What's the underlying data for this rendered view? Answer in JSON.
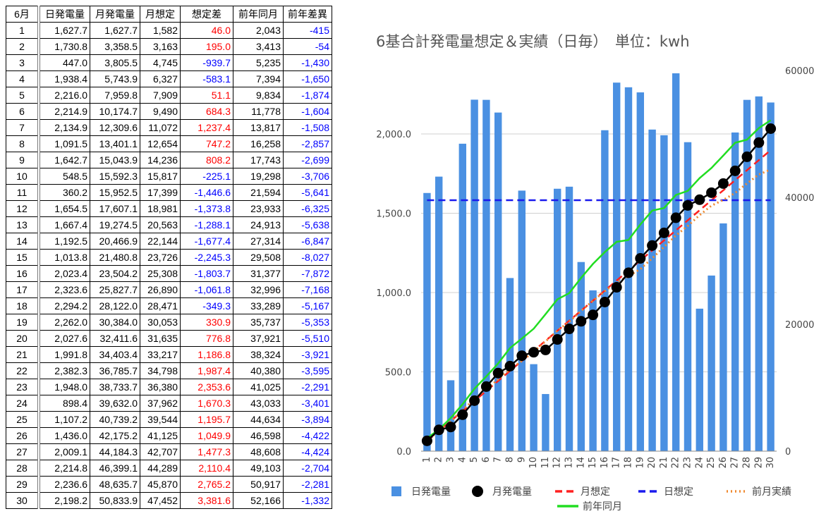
{
  "table": {
    "headers": [
      "6月",
      "日発電量",
      "月発電量",
      "月想定",
      "想定差",
      "前年同月",
      "前年差異"
    ],
    "rows": [
      [
        "1",
        "1,627.7",
        "1,627.7",
        "1,582",
        "46.0",
        "2,043",
        "-415"
      ],
      [
        "2",
        "1,730.8",
        "3,358.5",
        "3,163",
        "195.0",
        "3,413",
        "-54"
      ],
      [
        "3",
        "447.0",
        "3,805.5",
        "4,745",
        "-939.7",
        "5,235",
        "-1,430"
      ],
      [
        "4",
        "1,938.4",
        "5,743.9",
        "6,327",
        "-583.1",
        "7,394",
        "-1,650"
      ],
      [
        "5",
        "2,216.0",
        "7,959.8",
        "7,909",
        "51.1",
        "9,834",
        "-1,874"
      ],
      [
        "6",
        "2,214.9",
        "10,174.7",
        "9,490",
        "684.3",
        "11,778",
        "-1,604"
      ],
      [
        "7",
        "2,134.9",
        "12,309.6",
        "11,072",
        "1,237.4",
        "13,817",
        "-1,508"
      ],
      [
        "8",
        "1,091.5",
        "13,401.1",
        "12,654",
        "747.2",
        "16,258",
        "-2,857"
      ],
      [
        "9",
        "1,642.7",
        "15,043.9",
        "14,236",
        "808.2",
        "17,743",
        "-2,699"
      ],
      [
        "10",
        "548.5",
        "15,592.3",
        "15,817",
        "-225.1",
        "19,298",
        "-3,706"
      ],
      [
        "11",
        "360.2",
        "15,952.5",
        "17,399",
        "-1,446.6",
        "21,594",
        "-5,641"
      ],
      [
        "12",
        "1,654.5",
        "17,607.1",
        "18,981",
        "-1,373.8",
        "23,933",
        "-6,325"
      ],
      [
        "13",
        "1,667.4",
        "19,274.5",
        "20,563",
        "-1,288.1",
        "24,913",
        "-5,638"
      ],
      [
        "14",
        "1,192.5",
        "20,466.9",
        "22,144",
        "-1,677.4",
        "27,314",
        "-6,847"
      ],
      [
        "15",
        "1,013.8",
        "21,480.8",
        "23,726",
        "-2,245.3",
        "29,508",
        "-8,027"
      ],
      [
        "16",
        "2,023.4",
        "23,504.2",
        "25,308",
        "-1,803.7",
        "31,377",
        "-7,872"
      ],
      [
        "17",
        "2,323.6",
        "25,827.7",
        "26,890",
        "-1,061.8",
        "32,996",
        "-7,168"
      ],
      [
        "18",
        "2,294.2",
        "28,122.0",
        "28,471",
        "-349.3",
        "33,289",
        "-5,167"
      ],
      [
        "19",
        "2,262.0",
        "30,384.0",
        "30,053",
        "330.9",
        "35,737",
        "-5,353"
      ],
      [
        "20",
        "2,027.6",
        "32,411.6",
        "31,635",
        "776.8",
        "37,921",
        "-5,510"
      ],
      [
        "21",
        "1,991.8",
        "34,403.4",
        "33,217",
        "1,186.8",
        "38,324",
        "-3,921"
      ],
      [
        "22",
        "2,382.3",
        "36,785.7",
        "34,798",
        "1,987.4",
        "40,380",
        "-3,595"
      ],
      [
        "23",
        "1,948.0",
        "38,733.7",
        "36,380",
        "2,353.6",
        "41,025",
        "-2,291"
      ],
      [
        "24",
        "898.4",
        "39,632.0",
        "37,962",
        "1,670.3",
        "43,033",
        "-3,401"
      ],
      [
        "25",
        "1,107.2",
        "40,739.2",
        "39,544",
        "1,195.7",
        "44,634",
        "-3,894"
      ],
      [
        "26",
        "1,436.0",
        "42,175.2",
        "41,125",
        "1,049.9",
        "46,598",
        "-4,422"
      ],
      [
        "27",
        "2,009.1",
        "44,184.3",
        "42,707",
        "1,477.3",
        "48,608",
        "-4,424"
      ],
      [
        "28",
        "2,214.8",
        "46,399.1",
        "44,289",
        "2,110.4",
        "49,103",
        "-2,704"
      ],
      [
        "29",
        "2,236.6",
        "48,635.7",
        "45,870",
        "2,765.2",
        "50,917",
        "-2,281"
      ],
      [
        "30",
        "2,198.2",
        "50,833.9",
        "47,452",
        "3,381.6",
        "52,166",
        "-1,332"
      ]
    ],
    "colors": {
      "positive": "#ff0000",
      "negative": "#0000ff"
    }
  },
  "chart_data": {
    "type": "bar",
    "title": "6基合計発電量想定＆実績（日毎）　単位：kwh",
    "categories": [
      "1",
      "2",
      "3",
      "4",
      "5",
      "6",
      "7",
      "8",
      "9",
      "10",
      "11",
      "12",
      "13",
      "14",
      "15",
      "16",
      "17",
      "18",
      "19",
      "20",
      "21",
      "22",
      "23",
      "24",
      "25",
      "26",
      "27",
      "28",
      "29",
      "30"
    ],
    "left_axis": {
      "ticks": [
        "0.0",
        "500.0",
        "1,000.0",
        "1,500.0",
        "2,000.0"
      ],
      "range": [
        0,
        2400
      ]
    },
    "right_axis": {
      "ticks": [
        "0",
        "20000",
        "40000",
        "60000"
      ],
      "range": [
        0,
        60000
      ]
    },
    "series": [
      {
        "name": "日発電量",
        "kind": "bar",
        "axis": "left",
        "color": "#4a90e2",
        "values": [
          1627.7,
          1730.8,
          447.0,
          1938.4,
          2216.0,
          2214.9,
          2134.9,
          1091.5,
          1642.7,
          548.5,
          360.2,
          1654.5,
          1667.4,
          1192.5,
          1013.8,
          2023.4,
          2323.6,
          2294.2,
          2262.0,
          2027.6,
          1991.8,
          2382.3,
          1948.0,
          898.4,
          1107.2,
          1436.0,
          2009.1,
          2214.8,
          2236.6,
          2198.2
        ]
      },
      {
        "name": "月発電量",
        "kind": "line-markers",
        "axis": "right",
        "color": "#000000",
        "values": [
          1627.7,
          3358.5,
          3805.5,
          5743.9,
          7959.8,
          10174.7,
          12309.6,
          13401.1,
          15043.9,
          15592.3,
          15952.5,
          17607.1,
          19274.5,
          20466.9,
          21480.8,
          23504.2,
          25827.7,
          28122.0,
          30384.0,
          32411.6,
          34403.4,
          36785.7,
          38733.7,
          39632.0,
          40739.2,
          42175.2,
          44184.3,
          46399.1,
          48635.7,
          50833.9
        ]
      },
      {
        "name": "月想定",
        "kind": "dashed",
        "axis": "right",
        "color": "#ff2020",
        "values": [
          1582,
          3163,
          4745,
          6327,
          7909,
          9490,
          11072,
          12654,
          14236,
          15817,
          17399,
          18981,
          20563,
          22144,
          23726,
          25308,
          26890,
          28471,
          30053,
          31635,
          33217,
          34798,
          36380,
          37962,
          39544,
          41125,
          42707,
          44289,
          45870,
          47452
        ]
      },
      {
        "name": "日想定",
        "kind": "dashed",
        "axis": "left",
        "color": "#1a1aee",
        "values": [
          1582,
          1582,
          1582,
          1582,
          1582,
          1582,
          1582,
          1582,
          1582,
          1582,
          1582,
          1582,
          1582,
          1582,
          1582,
          1582,
          1582,
          1582,
          1582,
          1582,
          1582,
          1582,
          1582,
          1582,
          1582,
          1582,
          1582,
          1582,
          1582,
          1582
        ]
      },
      {
        "name": "前月実績",
        "kind": "dotted",
        "axis": "right",
        "color": "#f08a30",
        "values": [
          1550,
          3250,
          4700,
          6500,
          8200,
          9800,
          11300,
          12900,
          14200,
          15700,
          17300,
          19000,
          20400,
          22100,
          23700,
          25200,
          26600,
          27600,
          28700,
          30400,
          32200,
          34000,
          35500,
          37200,
          38700,
          39600,
          40700,
          42200,
          43600,
          44400
        ]
      },
      {
        "name": "前年同月",
        "kind": "line",
        "axis": "right",
        "color": "#22dd22",
        "values": [
          2043,
          3413,
          5235,
          7394,
          9834,
          11778,
          13817,
          16258,
          17743,
          19298,
          21594,
          23933,
          24913,
          27314,
          29508,
          31377,
          32996,
          33289,
          35737,
          37921,
          38324,
          40380,
          41025,
          43033,
          44634,
          46598,
          48608,
          49103,
          50917,
          52166
        ]
      }
    ],
    "legend_position": "bottom"
  }
}
